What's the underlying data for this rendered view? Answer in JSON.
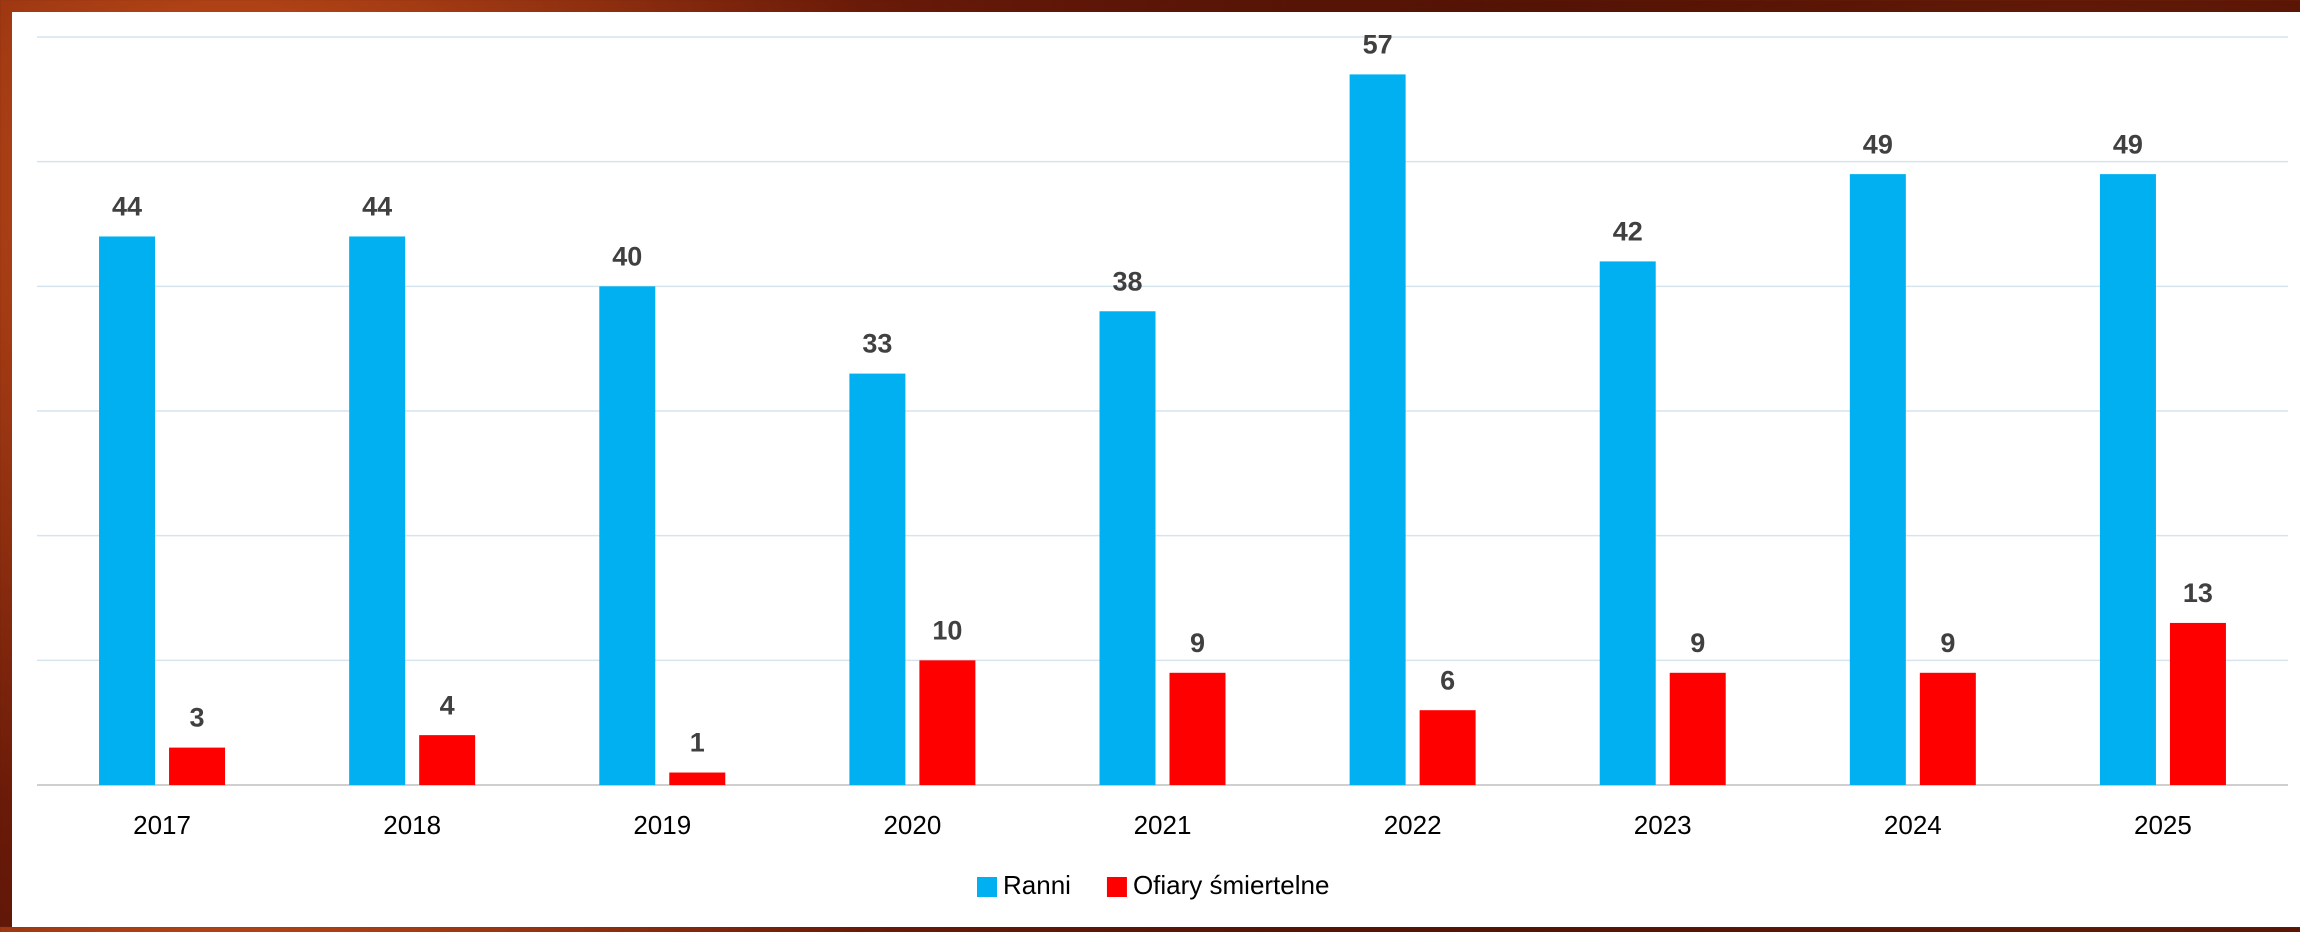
{
  "chart_data": {
    "type": "bar",
    "categories": [
      "2017",
      "2018",
      "2019",
      "2020",
      "2021",
      "2022",
      "2023",
      "2024",
      "2025"
    ],
    "series": [
      {
        "name": "Ranni",
        "color": "#00b0f0",
        "values": [
          44,
          44,
          40,
          33,
          38,
          57,
          42,
          49,
          49
        ]
      },
      {
        "name": "Ofiary śmiertelne",
        "color": "#ff0000",
        "values": [
          3,
          4,
          1,
          10,
          9,
          6,
          9,
          9,
          13
        ]
      }
    ],
    "ylim": [
      0,
      60
    ],
    "yticks": [
      0,
      10,
      20,
      30,
      40,
      50,
      60
    ],
    "grid": true,
    "legend": "bottom"
  }
}
